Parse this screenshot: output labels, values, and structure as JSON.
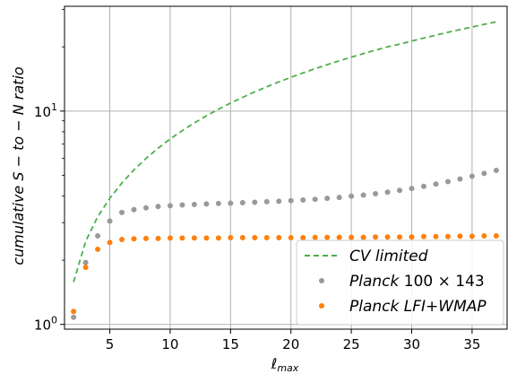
{
  "chart_data": {
    "type": "scatter",
    "xlabel": "ℓ",
    "xlabel_sub": "max",
    "ylabel": "cumulative S − to − N ratio",
    "xlim": [
      1.25,
      37.9
    ],
    "ylim": [
      0.95,
      31
    ],
    "yscale": "log",
    "grid": true,
    "legend_position": "bottom-right",
    "x_ticks": [
      5,
      10,
      15,
      20,
      25,
      30,
      35
    ],
    "y_ticks": [
      {
        "value": 1,
        "base": "10",
        "exp": "0"
      },
      {
        "value": 10,
        "base": "10",
        "exp": "1"
      }
    ],
    "series": [
      {
        "name": "CV limited",
        "style": "dashed-line",
        "color": "#4daf4a",
        "x": [
          2,
          3,
          4,
          5,
          6,
          7,
          8,
          9,
          10,
          11,
          12,
          13,
          14,
          15,
          16,
          17,
          18,
          19,
          20,
          21,
          22,
          23,
          24,
          25,
          26,
          27,
          28,
          29,
          30,
          31,
          32,
          33,
          34,
          35,
          36,
          37
        ],
        "y": [
          1.58,
          2.45,
          3.2,
          3.9,
          4.6,
          5.3,
          6.0,
          6.7,
          7.4,
          8.1,
          8.8,
          9.5,
          10.2,
          10.9,
          11.6,
          12.3,
          13.0,
          13.7,
          14.4,
          15.1,
          15.8,
          16.5,
          17.2,
          17.9,
          18.6,
          19.3,
          20.0,
          20.6,
          21.3,
          22.0,
          22.7,
          23.4,
          24.1,
          24.8,
          25.5,
          26.2
        ]
      },
      {
        "name_prefix": "Planck",
        "name_suffix": "100 × 143",
        "style": "dots",
        "color": "#999999",
        "x": [
          2,
          3,
          4,
          5,
          6,
          7,
          8,
          9,
          10,
          11,
          12,
          13,
          14,
          15,
          16,
          17,
          18,
          19,
          20,
          21,
          22,
          23,
          24,
          25,
          26,
          27,
          28,
          29,
          30,
          31,
          32,
          33,
          34,
          35,
          36,
          37
        ],
        "y": [
          1.08,
          1.95,
          2.6,
          3.05,
          3.35,
          3.45,
          3.52,
          3.57,
          3.6,
          3.63,
          3.65,
          3.67,
          3.69,
          3.7,
          3.72,
          3.74,
          3.76,
          3.78,
          3.8,
          3.83,
          3.86,
          3.9,
          3.94,
          3.99,
          4.04,
          4.1,
          4.17,
          4.25,
          4.34,
          4.44,
          4.55,
          4.67,
          4.8,
          4.95,
          5.1,
          5.27
        ]
      },
      {
        "name_prefix": "Planck",
        "name_suffix": "LFI+WMAP",
        "style": "dots",
        "color": "#ff7f0e",
        "x": [
          2,
          3,
          4,
          5,
          6,
          7,
          8,
          9,
          10,
          11,
          12,
          13,
          14,
          15,
          16,
          17,
          18,
          19,
          20,
          21,
          22,
          23,
          24,
          25,
          26,
          27,
          28,
          29,
          30,
          31,
          32,
          33,
          34,
          35,
          36,
          37
        ],
        "y": [
          1.15,
          1.85,
          2.25,
          2.42,
          2.5,
          2.52,
          2.53,
          2.53,
          2.54,
          2.54,
          2.54,
          2.54,
          2.54,
          2.55,
          2.55,
          2.55,
          2.55,
          2.55,
          2.55,
          2.55,
          2.56,
          2.56,
          2.56,
          2.56,
          2.56,
          2.57,
          2.57,
          2.57,
          2.57,
          2.58,
          2.58,
          2.58,
          2.59,
          2.59,
          2.6,
          2.6
        ]
      }
    ]
  }
}
